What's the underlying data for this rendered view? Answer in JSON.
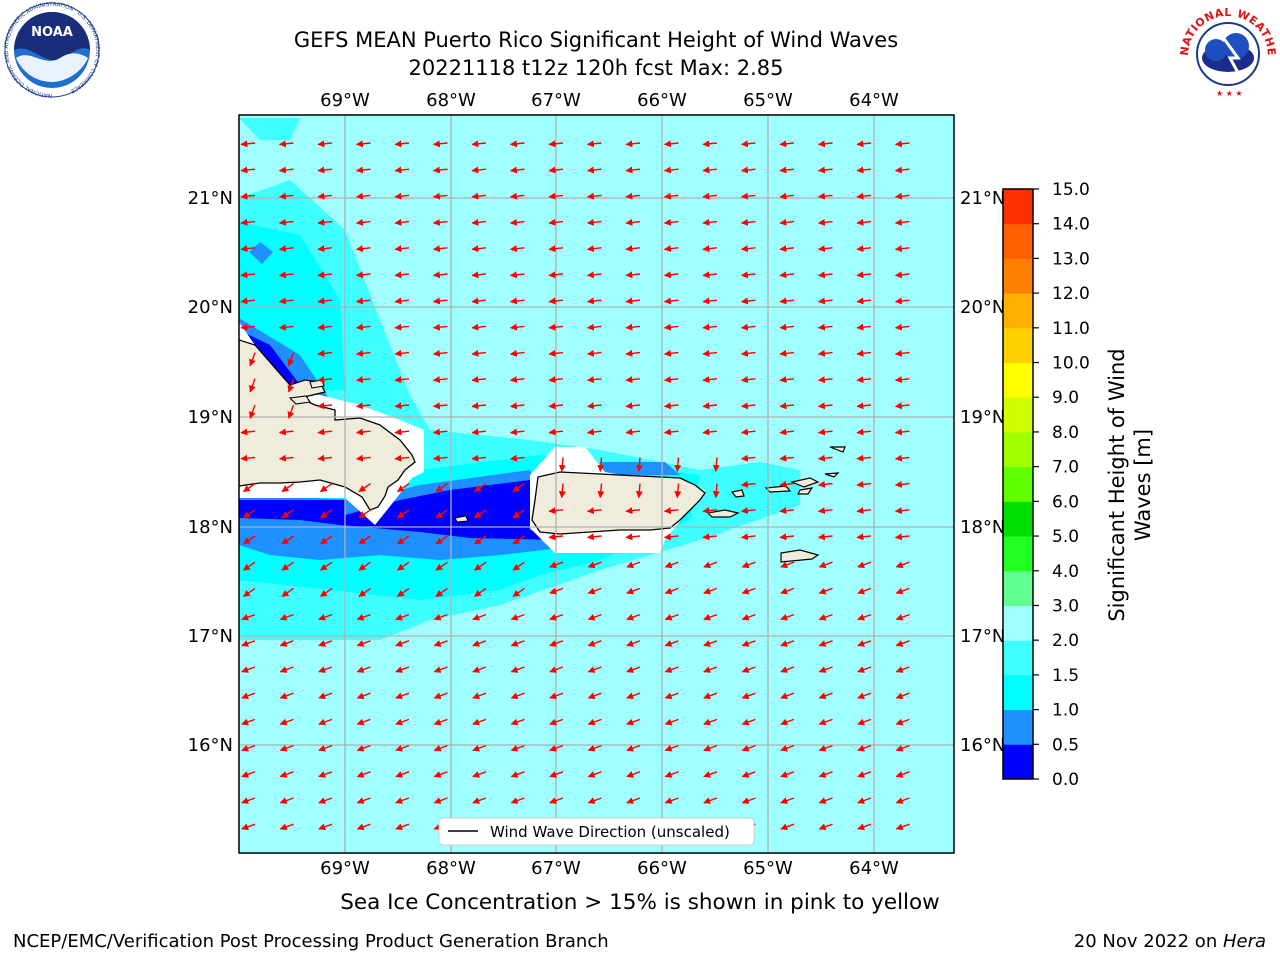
{
  "title": {
    "line1": "GEFS MEAN Puerto Rico Significant Height of Wind Waves",
    "line2": "20221118 t12z 120h fcst   Max: 2.85"
  },
  "map": {
    "lon_ticks": [
      "69°W",
      "68°W",
      "67°W",
      "66°W",
      "65°W",
      "64°W"
    ],
    "lat_ticks": [
      "16°N",
      "17°N",
      "18°N",
      "19°N",
      "20°N",
      "21°N"
    ],
    "legend_label": "Wind Wave Direction (unscaled)",
    "arrow_color": "#ff0000",
    "grid_color": "#b0b0b0",
    "land_color": "#efecdc"
  },
  "colorbar": {
    "label_line1": "Significant Height of Wind",
    "label_line2": "Waves [m]",
    "ticks": [
      "0.0",
      "0.5",
      "1.0",
      "1.5",
      "2.0",
      "3.0",
      "4.0",
      "5.0",
      "6.0",
      "7.0",
      "8.0",
      "9.0",
      "10.0",
      "11.0",
      "12.0",
      "13.0",
      "14.0",
      "15.0"
    ],
    "colors": [
      "#0000ff",
      "#1e90ff",
      "#00ffff",
      "#40ffff",
      "#a0ffff",
      "#60ff90",
      "#20ff20",
      "#00e000",
      "#60ff00",
      "#a0ff00",
      "#d0ff00",
      "#ffff00",
      "#ffd000",
      "#ffb000",
      "#ff8000",
      "#ff6000",
      "#ff3000"
    ]
  },
  "note": "Sea Ice Concentration > 15% is shown in pink to yellow",
  "footer": {
    "left": "NCEP/EMC/Verification Post Processing Product Generation Branch",
    "right_prefix": "20 Nov 2022 on ",
    "right_host": "Hera"
  },
  "logos": {
    "noaa_text": "NOAA",
    "noaa_ring": "NATIONAL OCEANIC AND ATMOSPHERIC ADMINISTRATION · U.S. DEPARTMENT OF COMMERCE",
    "nws_ring": "NATIONAL WEATHER SERVICE"
  }
}
